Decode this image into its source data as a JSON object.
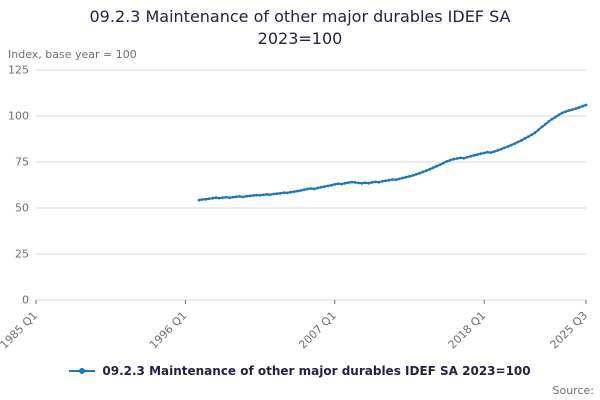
{
  "header": {
    "title": "09.2.3 Maintenance of other major durables IDEF SA 2023=100",
    "axis_note": "Index, base year = 100"
  },
  "legend": {
    "label": "09.2.3 Maintenance of other major durables IDEF SA 2023=100"
  },
  "footer": {
    "source_label": "Source:"
  },
  "colors": {
    "line": "#1f77b4",
    "grid": "#d9d9d9",
    "axis_text": "#707071",
    "title_text": "#222244"
  },
  "chart_data": {
    "type": "line",
    "title": "09.2.3 Maintenance of other major durables IDEF SA 2023=100",
    "xlabel": "",
    "ylabel": "Index, base year = 100",
    "ylim": [
      0,
      125
    ],
    "y_ticks": [
      0,
      25,
      50,
      75,
      100,
      125
    ],
    "x_range": [
      "1985 Q1",
      "2025 Q3"
    ],
    "x_tick_labels": [
      "1985 Q1",
      "1996 Q1",
      "2007 Q1",
      "2018 Q1",
      "2025 Q3"
    ],
    "grid": "horizontal",
    "legend_position": "bottom",
    "series": [
      {
        "name": "09.2.3 Maintenance of other major durables IDEF SA 2023=100",
        "start_period": "1997 Q1",
        "frequency": "quarterly",
        "values": [
          54.3,
          54.6,
          54.8,
          55.0,
          55.3,
          55.6,
          55.4,
          55.6,
          55.8,
          55.6,
          55.9,
          56.1,
          56.3,
          56.0,
          56.4,
          56.6,
          56.8,
          57.0,
          56.9,
          57.2,
          57.4,
          57.3,
          57.6,
          57.8,
          58.0,
          58.3,
          58.2,
          58.6,
          58.9,
          59.2,
          59.5,
          59.9,
          60.3,
          60.6,
          60.4,
          60.9,
          61.3,
          61.7,
          62.0,
          62.4,
          62.8,
          63.2,
          63.0,
          63.5,
          63.8,
          64.1,
          63.9,
          63.6,
          63.4,
          63.7,
          63.5,
          63.9,
          64.2,
          64.0,
          64.5,
          64.8,
          65.1,
          65.5,
          65.3,
          65.8,
          66.3,
          66.8,
          67.2,
          67.7,
          68.3,
          68.9,
          69.6,
          70.3,
          71.1,
          71.9,
          72.7,
          73.5,
          74.4,
          75.3,
          76.0,
          76.5,
          76.9,
          77.3,
          77.0,
          77.6,
          78.1,
          78.6,
          79.0,
          79.5,
          79.9,
          80.3,
          80.1,
          80.7,
          81.3,
          82.0,
          82.7,
          83.4,
          84.2,
          85.0,
          85.9,
          86.8,
          87.8,
          88.8,
          89.8,
          90.9,
          92.5,
          94.0,
          95.5,
          97.0,
          98.3,
          99.4,
          100.6,
          101.7,
          102.4,
          103.0,
          103.5,
          104.0,
          104.6,
          105.3,
          106.0
        ]
      }
    ]
  }
}
